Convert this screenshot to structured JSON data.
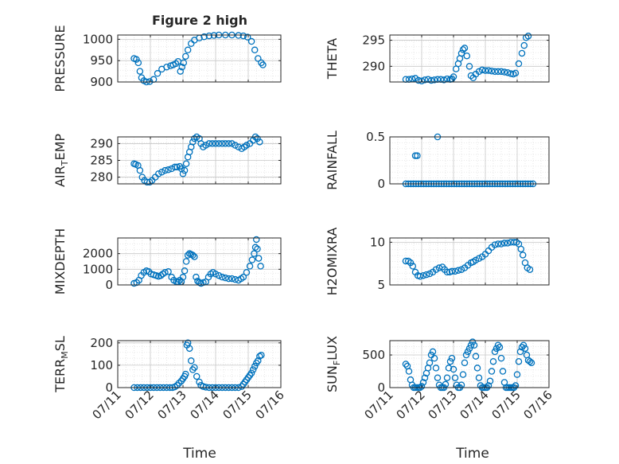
{
  "figure": {
    "title": "Figure 2 high",
    "xlabel": "Time",
    "marker_color": "#0072BD",
    "grid_color": "#c8c8c8"
  },
  "chart_data": [
    {
      "type": "scatter",
      "ylabel": "PRESSURE",
      "ylim": [
        900,
        1010
      ],
      "yticks": [
        900,
        950,
        1000
      ],
      "xlim": [
        11,
        16
      ],
      "xticks": [
        "07/11",
        "07/12",
        "07/13",
        "07/14",
        "07/15",
        "07/16"
      ],
      "x_labels_shown": false,
      "grid": true,
      "x": [
        11.5,
        11.57,
        11.63,
        11.68,
        11.73,
        11.8,
        11.88,
        11.98,
        12.1,
        12.22,
        12.35,
        12.5,
        12.62,
        12.7,
        12.78,
        12.85,
        12.92,
        12.97,
        13.02,
        13.08,
        13.15,
        13.25,
        13.35,
        13.5,
        13.65,
        13.8,
        13.95,
        14.1,
        14.3,
        14.5,
        14.7,
        14.85,
        14.98,
        15.1,
        15.2,
        15.3,
        15.4,
        15.45
      ],
      "y": [
        955,
        953,
        945,
        925,
        910,
        903,
        900,
        901,
        906,
        920,
        930,
        935,
        938,
        940,
        943,
        948,
        925,
        935,
        945,
        960,
        975,
        990,
        998,
        1003,
        1006,
        1008,
        1009,
        1010,
        1010,
        1010,
        1009,
        1008,
        1005,
        995,
        975,
        955,
        945,
        940
      ]
    },
    {
      "type": "scatter",
      "ylabel": "THETA",
      "ylim": [
        287,
        296
      ],
      "yticks": [
        290,
        295
      ],
      "xlim": [
        11,
        16
      ],
      "xticks": [
        "07/11",
        "07/12",
        "07/13",
        "07/14",
        "07/15",
        "07/16"
      ],
      "x_labels_shown": false,
      "grid": true,
      "x": [
        11.5,
        11.6,
        11.7,
        11.8,
        11.9,
        12.0,
        12.1,
        12.2,
        12.3,
        12.4,
        12.5,
        12.6,
        12.7,
        12.8,
        12.9,
        12.95,
        13.0,
        13.08,
        13.15,
        13.2,
        13.25,
        13.3,
        13.35,
        13.42,
        13.5,
        13.55,
        13.62,
        13.7,
        13.8,
        13.9,
        14.0,
        14.1,
        14.2,
        14.3,
        14.4,
        14.5,
        14.6,
        14.7,
        14.8,
        14.88,
        14.95,
        15.05,
        15.15,
        15.22,
        15.28,
        15.35
      ],
      "y": [
        287.5,
        287.5,
        287.6,
        287.7,
        287.3,
        287.2,
        287.4,
        287.5,
        287.3,
        287.4,
        287.5,
        287.5,
        287.4,
        287.6,
        287.5,
        287.6,
        288.0,
        289.5,
        290.5,
        291.5,
        292.5,
        293.2,
        293.5,
        292.0,
        290.0,
        288.2,
        287.8,
        288.5,
        289.0,
        289.3,
        289.2,
        289.2,
        289.1,
        289.0,
        289.0,
        289.0,
        288.9,
        288.8,
        288.6,
        288.5,
        288.7,
        290.5,
        292.5,
        294.0,
        295.5,
        295.8
      ]
    },
    {
      "type": "scatter",
      "ylabel": "AIR_TEMP",
      "ylim": [
        278,
        292
      ],
      "yticks": [
        280,
        285,
        290
      ],
      "xlim": [
        11,
        16
      ],
      "xticks": [
        "07/11",
        "07/12",
        "07/13",
        "07/14",
        "07/15",
        "07/16"
      ],
      "x_labels_shown": false,
      "grid": true,
      "x": [
        11.5,
        11.55,
        11.62,
        11.68,
        11.75,
        11.82,
        11.9,
        11.98,
        12.05,
        12.15,
        12.25,
        12.35,
        12.45,
        12.55,
        12.65,
        12.75,
        12.82,
        12.9,
        12.95,
        13.0,
        13.05,
        13.1,
        13.15,
        13.2,
        13.25,
        13.3,
        13.35,
        13.42,
        13.5,
        13.55,
        13.62,
        13.7,
        13.8,
        13.9,
        14.0,
        14.1,
        14.2,
        14.3,
        14.4,
        14.5,
        14.6,
        14.7,
        14.8,
        14.88,
        14.95,
        15.05,
        15.15,
        15.22,
        15.28,
        15.35
      ],
      "y": [
        284.0,
        283.8,
        283.5,
        282.0,
        280.0,
        279.0,
        278.5,
        278.5,
        279.0,
        280.0,
        281.0,
        281.5,
        282.0,
        282.2,
        282.5,
        283.0,
        283.0,
        283.2,
        282.5,
        281.0,
        282.0,
        284.0,
        286.0,
        287.5,
        289.0,
        290.5,
        291.5,
        292.0,
        291.5,
        290.0,
        289.0,
        289.5,
        290.0,
        290.0,
        290.0,
        290.0,
        290.0,
        290.0,
        290.0,
        290.0,
        289.5,
        289.0,
        288.5,
        289.0,
        289.5,
        290.0,
        291.0,
        292.0,
        291.5,
        290.5
      ]
    },
    {
      "type": "scatter",
      "ylabel": "RAINFALL",
      "ylim": [
        0,
        0.5
      ],
      "yticks": [
        0,
        0.5
      ],
      "xlim": [
        11,
        16
      ],
      "xticks": [
        "07/11",
        "07/12",
        "07/13",
        "07/14",
        "07/15",
        "07/16"
      ],
      "x_labels_shown": false,
      "grid": true,
      "x": [
        11.5,
        11.58,
        11.66,
        11.74,
        11.82,
        11.9,
        11.98,
        12.06,
        12.14,
        12.22,
        12.3,
        12.38,
        12.46,
        12.54,
        12.62,
        12.7,
        12.78,
        12.86,
        12.94,
        13.02,
        13.1,
        13.18,
        13.26,
        13.34,
        13.42,
        13.5,
        13.58,
        13.66,
        13.74,
        13.82,
        13.9,
        13.98,
        14.06,
        14.14,
        14.22,
        14.3,
        14.38,
        14.46,
        14.54,
        14.62,
        14.7,
        14.78,
        14.86,
        14.94,
        15.02,
        15.1,
        15.18,
        15.26,
        15.34,
        15.42,
        15.5,
        11.8,
        11.86,
        12.5
      ],
      "y": [
        0,
        0,
        0,
        0,
        0,
        0,
        0,
        0,
        0,
        0,
        0,
        0,
        0,
        0,
        0,
        0,
        0,
        0,
        0,
        0,
        0,
        0,
        0,
        0,
        0,
        0,
        0,
        0,
        0,
        0,
        0,
        0,
        0,
        0,
        0,
        0,
        0,
        0,
        0,
        0,
        0,
        0,
        0,
        0,
        0,
        0,
        0,
        0,
        0,
        0,
        0,
        0.3,
        0.3,
        0.5
      ]
    },
    {
      "type": "scatter",
      "ylabel": "MIXDEPTH",
      "ylim": [
        0,
        3000
      ],
      "yticks": [
        0,
        1000,
        2000
      ],
      "xlim": [
        11,
        16
      ],
      "xticks": [
        "07/11",
        "07/12",
        "07/13",
        "07/14",
        "07/15",
        "07/16"
      ],
      "x_labels_shown": false,
      "grid": true,
      "x": [
        11.5,
        11.58,
        11.65,
        11.72,
        11.8,
        11.88,
        11.95,
        12.02,
        12.1,
        12.18,
        12.25,
        12.32,
        12.38,
        12.45,
        12.55,
        12.65,
        12.72,
        12.8,
        12.85,
        12.9,
        12.95,
        13.0,
        13.05,
        13.1,
        13.15,
        13.2,
        13.25,
        13.3,
        13.35,
        13.4,
        13.45,
        13.5,
        13.55,
        13.62,
        13.7,
        13.78,
        13.85,
        13.92,
        14.0,
        14.1,
        14.2,
        14.3,
        14.4,
        14.5,
        14.6,
        14.7,
        14.78,
        14.85,
        14.95,
        15.05,
        15.12,
        15.18,
        15.22,
        15.25,
        15.28,
        15.32,
        15.38
      ],
      "y": [
        100,
        150,
        300,
        600,
        800,
        900,
        850,
        700,
        650,
        600,
        550,
        600,
        700,
        800,
        850,
        500,
        300,
        200,
        200,
        300,
        200,
        500,
        900,
        1500,
        1900,
        2000,
        1950,
        1900,
        1800,
        500,
        250,
        150,
        100,
        150,
        200,
        500,
        700,
        800,
        700,
        600,
        500,
        450,
        400,
        400,
        350,
        300,
        400,
        500,
        800,
        1200,
        1600,
        2000,
        2400,
        2900,
        2300,
        1700,
        1200
      ]
    },
    {
      "type": "scatter",
      "ylabel": "H2OMIXRA",
      "ylim": [
        5,
        10.5
      ],
      "yticks": [
        5,
        10
      ],
      "xlim": [
        11,
        16
      ],
      "xticks": [
        "07/11",
        "07/12",
        "07/13",
        "07/14",
        "07/15",
        "07/16"
      ],
      "x_labels_shown": false,
      "grid": true,
      "x": [
        11.5,
        11.58,
        11.65,
        11.72,
        11.8,
        11.88,
        11.95,
        12.05,
        12.15,
        12.25,
        12.35,
        12.45,
        12.55,
        12.65,
        12.72,
        12.8,
        12.88,
        12.95,
        13.05,
        13.15,
        13.25,
        13.35,
        13.45,
        13.55,
        13.62,
        13.7,
        13.8,
        13.9,
        14.0,
        14.1,
        14.2,
        14.3,
        14.4,
        14.5,
        14.6,
        14.7,
        14.8,
        14.9,
        14.98,
        15.05,
        15.12,
        15.18,
        15.25,
        15.32,
        15.4
      ],
      "y": [
        7.8,
        7.8,
        7.6,
        7.2,
        6.5,
        6.1,
        6.0,
        6.1,
        6.2,
        6.3,
        6.5,
        6.8,
        7.0,
        7.1,
        6.8,
        6.5,
        6.5,
        6.6,
        6.6,
        6.7,
        6.8,
        7.0,
        7.3,
        7.6,
        7.7,
        7.9,
        8.1,
        8.3,
        8.6,
        9.0,
        9.4,
        9.7,
        9.8,
        9.8,
        9.9,
        9.9,
        10.0,
        10.0,
        10.0,
        9.8,
        9.2,
        8.5,
        7.6,
        7.0,
        6.8
      ]
    },
    {
      "type": "scatter",
      "ylabel": "TERR_MSL",
      "ylim": [
        0,
        210
      ],
      "yticks": [
        0,
        100,
        200
      ],
      "xlim": [
        11,
        16
      ],
      "xticks": [
        "07/11",
        "07/12",
        "07/13",
        "07/14",
        "07/15",
        "07/16"
      ],
      "x_labels_shown": true,
      "grid": true,
      "x": [
        11.5,
        11.6,
        11.7,
        11.8,
        11.9,
        12.0,
        12.1,
        12.2,
        12.3,
        12.4,
        12.5,
        12.6,
        12.68,
        12.75,
        12.82,
        12.88,
        12.95,
        13.0,
        13.05,
        13.08,
        13.12,
        13.15,
        13.2,
        13.25,
        13.3,
        13.35,
        13.42,
        13.5,
        13.55,
        13.62,
        13.7,
        13.8,
        13.9,
        14.0,
        14.1,
        14.2,
        14.3,
        14.4,
        14.5,
        14.6,
        14.7,
        14.8,
        14.85,
        14.9,
        14.95,
        15.0,
        15.05,
        15.1,
        15.15,
        15.2,
        15.25,
        15.3,
        15.35,
        15.4
      ],
      "y": [
        0,
        0,
        0,
        0,
        0,
        0,
        0,
        0,
        0,
        0,
        0,
        0,
        0,
        3,
        10,
        20,
        30,
        40,
        50,
        60,
        190,
        200,
        175,
        120,
        80,
        90,
        50,
        25,
        10,
        5,
        2,
        0,
        0,
        0,
        0,
        0,
        0,
        0,
        0,
        0,
        0,
        5,
        15,
        25,
        35,
        45,
        55,
        65,
        80,
        95,
        110,
        120,
        140,
        145
      ]
    },
    {
      "type": "scatter",
      "ylabel": "SUN_FLUX",
      "ylim": [
        0,
        720
      ],
      "yticks": [
        0,
        500
      ],
      "xlim": [
        11,
        16
      ],
      "xticks": [
        "07/11",
        "07/12",
        "07/13",
        "07/14",
        "07/15",
        "07/16"
      ],
      "x_labels_shown": true,
      "grid": true,
      "x": [
        11.5,
        11.55,
        11.6,
        11.65,
        11.7,
        11.75,
        11.8,
        11.85,
        11.9,
        11.95,
        12.0,
        12.05,
        12.1,
        12.15,
        12.2,
        12.25,
        12.3,
        12.35,
        12.4,
        12.45,
        12.5,
        12.55,
        12.6,
        12.65,
        12.7,
        12.75,
        12.8,
        12.85,
        12.9,
        12.95,
        13.0,
        13.05,
        13.1,
        13.15,
        13.2,
        13.25,
        13.3,
        13.35,
        13.4,
        13.45,
        13.5,
        13.55,
        13.6,
        13.65,
        13.7,
        13.75,
        13.8,
        13.85,
        13.9,
        13.95,
        14.0,
        14.05,
        14.1,
        14.15,
        14.2,
        14.25,
        14.3,
        14.35,
        14.4,
        14.45,
        14.5,
        14.55,
        14.6,
        14.65,
        14.7,
        14.75,
        14.8,
        14.85,
        14.9,
        14.95,
        15.0,
        15.05,
        15.1,
        15.15,
        15.2,
        15.25,
        15.3,
        15.35,
        15.4,
        15.45
      ],
      "y": [
        360,
        330,
        250,
        120,
        40,
        0,
        0,
        0,
        0,
        0,
        20,
        80,
        150,
        220,
        300,
        380,
        500,
        550,
        450,
        300,
        150,
        40,
        0,
        0,
        0,
        50,
        150,
        300,
        400,
        450,
        280,
        150,
        40,
        0,
        0,
        40,
        200,
        380,
        500,
        550,
        600,
        650,
        700,
        650,
        480,
        300,
        150,
        30,
        0,
        0,
        0,
        0,
        30,
        100,
        250,
        400,
        550,
        600,
        650,
        620,
        450,
        250,
        80,
        0,
        0,
        0,
        0,
        0,
        0,
        30,
        200,
        400,
        550,
        620,
        650,
        600,
        500,
        420,
        400,
        380
      ]
    }
  ]
}
